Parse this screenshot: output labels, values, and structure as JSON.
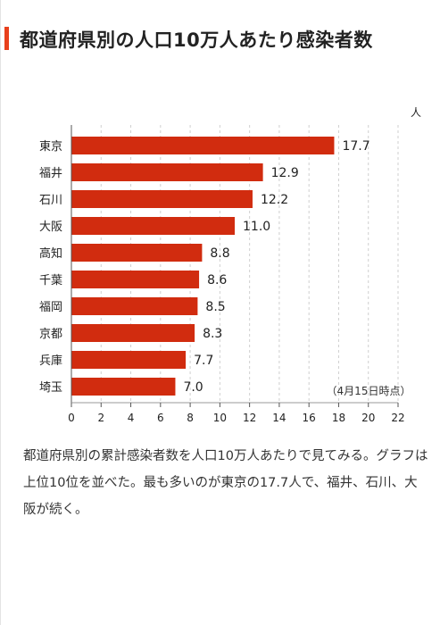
{
  "article": {
    "title": "都道府県別の人口10万人あたり感染者数",
    "body": "都道府県別の累計感染者数を人口10万人あたりで見てみる。グラフは上位10位を並べた。最も多いのが東京の17.7人で、福井、石川、大阪が続く。"
  },
  "colors": {
    "accent": "#e8401c",
    "bar": "#d12c0f"
  },
  "chart_data": {
    "type": "bar",
    "orientation": "horizontal",
    "title": "都道府県別の人口10万人あたり感染者数",
    "unit_label": "人",
    "note": "（4月15日時点）",
    "categories": [
      "東京",
      "福井",
      "石川",
      "大阪",
      "高知",
      "千葉",
      "福岡",
      "京都",
      "兵庫",
      "埼玉"
    ],
    "values": [
      17.7,
      12.9,
      12.2,
      11.0,
      8.8,
      8.6,
      8.5,
      8.3,
      7.7,
      7.0
    ],
    "value_labels": [
      "17.7",
      "12.9",
      "12.2",
      "11.0",
      "8.8",
      "8.6",
      "8.5",
      "8.3",
      "7.7",
      "7.0"
    ],
    "xlim": [
      0,
      22
    ],
    "xticks": [
      "0",
      "2",
      "4",
      "6",
      "8",
      "10",
      "12",
      "14",
      "16",
      "18",
      "20",
      "22"
    ],
    "grid": true
  }
}
